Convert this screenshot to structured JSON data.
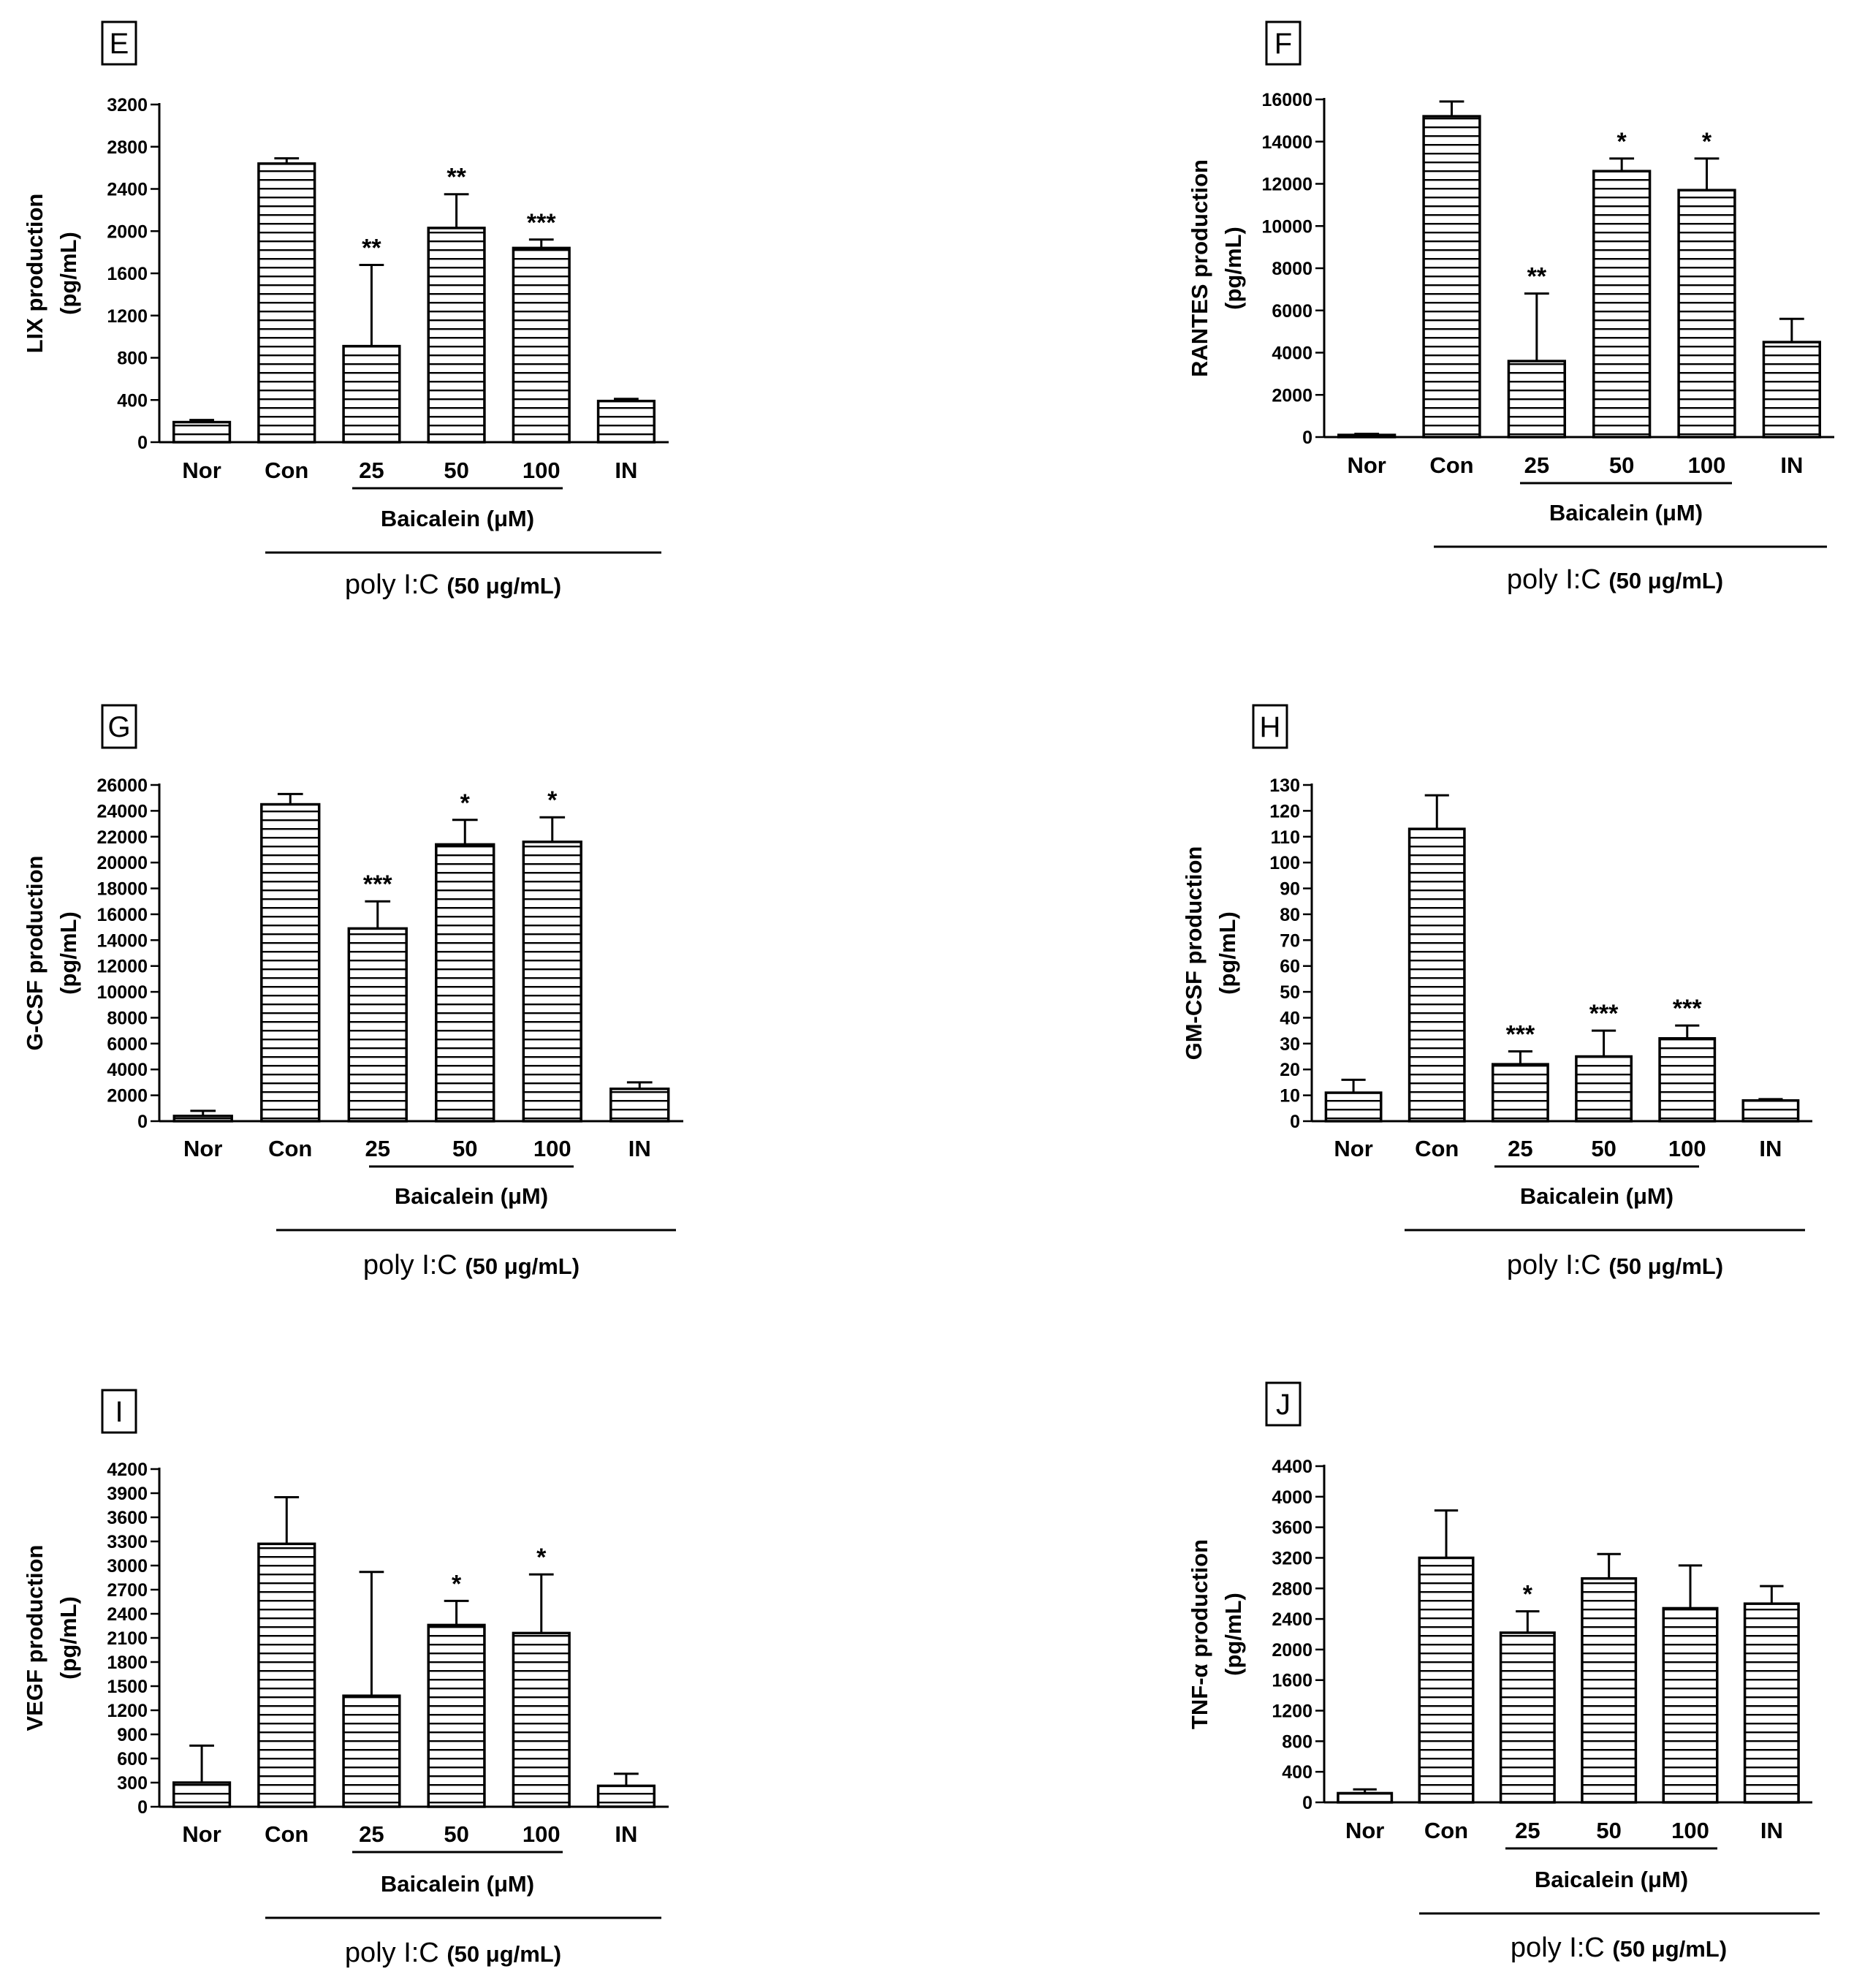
{
  "chart_data": [
    {
      "type": "bar",
      "panel": "E",
      "ylabel": [
        "LIX production",
        "(pg/mL)"
      ],
      "categories": [
        "Nor",
        "Con",
        "25",
        "50",
        "100",
        "IN"
      ],
      "values": [
        190,
        2640,
        910,
        2030,
        1840,
        390
      ],
      "errors": [
        20,
        50,
        770,
        320,
        80,
        20
      ],
      "significance": [
        "",
        "",
        "**",
        "**",
        "***",
        ""
      ],
      "ylim": [
        0,
        3200
      ],
      "yticks": [
        "0",
        "400",
        "800",
        "1200",
        "1600",
        "2000",
        "2400",
        "2800",
        "3200"
      ],
      "treatment_label": "Baicalein (μM)",
      "stimulus_label": "poly I:C",
      "stimulus_conc": "(50 μg/mL)"
    },
    {
      "type": "bar",
      "panel": "F",
      "ylabel": [
        "RANTES production",
        "(pg/mL)"
      ],
      "categories": [
        "Nor",
        "Con",
        "25",
        "50",
        "100",
        "IN"
      ],
      "values": [
        100,
        15200,
        3600,
        12600,
        11700,
        4500
      ],
      "errors": [
        50,
        700,
        3200,
        600,
        1500,
        1100
      ],
      "significance": [
        "",
        "",
        "**",
        "*",
        "*",
        ""
      ],
      "ylim": [
        0,
        16000
      ],
      "yticks": [
        "0",
        "2000",
        "4000",
        "6000",
        "8000",
        "10000",
        "12000",
        "14000",
        "16000"
      ],
      "treatment_label": "Baicalein (μM)",
      "stimulus_label": "poly I:C",
      "stimulus_conc": "(50 μg/mL)"
    },
    {
      "type": "bar",
      "panel": "G",
      "ylabel": [
        "G-CSF production",
        "(pg/mL)"
      ],
      "categories": [
        "Nor",
        "Con",
        "25",
        "50",
        "100",
        "IN"
      ],
      "values": [
        400,
        24500,
        14900,
        21400,
        21600,
        2500
      ],
      "errors": [
        400,
        800,
        2100,
        1900,
        1900,
        500
      ],
      "significance": [
        "",
        "",
        "***",
        "*",
        "*",
        ""
      ],
      "ylim": [
        0,
        26000
      ],
      "yticks": [
        "0",
        "2000",
        "4000",
        "6000",
        "8000",
        "10000",
        "12000",
        "14000",
        "16000",
        "18000",
        "20000",
        "22000",
        "24000",
        "26000"
      ],
      "treatment_label": "Baicalein (μM)",
      "stimulus_label": "poly I:C",
      "stimulus_conc": "(50 μg/mL)"
    },
    {
      "type": "bar",
      "panel": "H",
      "ylabel": [
        "GM-CSF production",
        "(pg/mL)"
      ],
      "categories": [
        "Nor",
        "Con",
        "25",
        "50",
        "100",
        "IN"
      ],
      "values": [
        11,
        113,
        22,
        25,
        32,
        8
      ],
      "errors": [
        5,
        13,
        5,
        10,
        5,
        0.5
      ],
      "significance": [
        "",
        "",
        "***",
        "***",
        "***",
        ""
      ],
      "ylim": [
        0,
        130
      ],
      "yticks": [
        "0",
        "10",
        "20",
        "30",
        "40",
        "50",
        "60",
        "70",
        "80",
        "90",
        "100",
        "110",
        "120",
        "130"
      ],
      "treatment_label": "Baicalein (μM)",
      "stimulus_label": "poly I:C",
      "stimulus_conc": "(50 μg/mL)"
    },
    {
      "type": "bar",
      "panel": "I",
      "ylabel": [
        "VEGF production",
        "(pg/mL)"
      ],
      "categories": [
        "Nor",
        "Con",
        "25",
        "50",
        "100",
        "IN"
      ],
      "values": [
        300,
        3270,
        1380,
        2260,
        2160,
        260
      ],
      "errors": [
        460,
        580,
        1540,
        300,
        730,
        150
      ],
      "significance": [
        "",
        "",
        "",
        "*",
        "*",
        ""
      ],
      "ylim": [
        0,
        4200
      ],
      "yticks": [
        "0",
        "300",
        "600",
        "900",
        "1200",
        "1500",
        "1800",
        "2100",
        "2400",
        "2700",
        "3000",
        "3300",
        "3600",
        "3900",
        "4200"
      ],
      "treatment_label": "Baicalein (μM)",
      "stimulus_label": "poly I:C",
      "stimulus_conc": "(50 μg/mL)"
    },
    {
      "type": "bar",
      "panel": "J",
      "ylabel": [
        "TNF-α production",
        "(pg/mL)"
      ],
      "categories": [
        "Nor",
        "Con",
        "25",
        "50",
        "100",
        "IN"
      ],
      "values": [
        120,
        3200,
        2220,
        2930,
        2540,
        2600
      ],
      "errors": [
        50,
        620,
        280,
        320,
        560,
        230
      ],
      "significance": [
        "",
        "",
        "*",
        "",
        "",
        ""
      ],
      "ylim": [
        0,
        4400
      ],
      "yticks": [
        "0",
        "400",
        "800",
        "1200",
        "1600",
        "2000",
        "2400",
        "2800",
        "3200",
        "3600",
        "4000",
        "4400"
      ],
      "treatment_label": "Baicalein (μM)",
      "stimulus_label": "poly I:C",
      "stimulus_conc": "(50 μg/mL)"
    }
  ]
}
